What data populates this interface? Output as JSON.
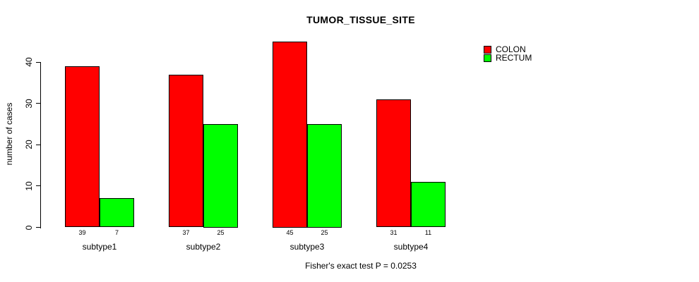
{
  "chart_data": {
    "type": "bar",
    "title": "TUMOR_TISSUE_SITE",
    "xlabel": "",
    "ylabel": "number of cases",
    "annotation": "Fisher's exact test P = 0.0253",
    "categories": [
      "subtype1",
      "subtype2",
      "subtype3",
      "subtype4"
    ],
    "series": [
      {
        "name": "COLON",
        "color": "#ff0000",
        "values": [
          39,
          37,
          45,
          31
        ]
      },
      {
        "name": "RECTUM",
        "color": "#00ff00",
        "values": [
          7,
          25,
          25,
          11
        ]
      }
    ],
    "ylim": [
      0,
      40
    ],
    "yticks": [
      0,
      10,
      20,
      30,
      40
    ],
    "grid": false,
    "legend_position": "top-right",
    "bar_border_color": "#000000",
    "text_color": "#000000",
    "background_color": "#ffffff"
  }
}
